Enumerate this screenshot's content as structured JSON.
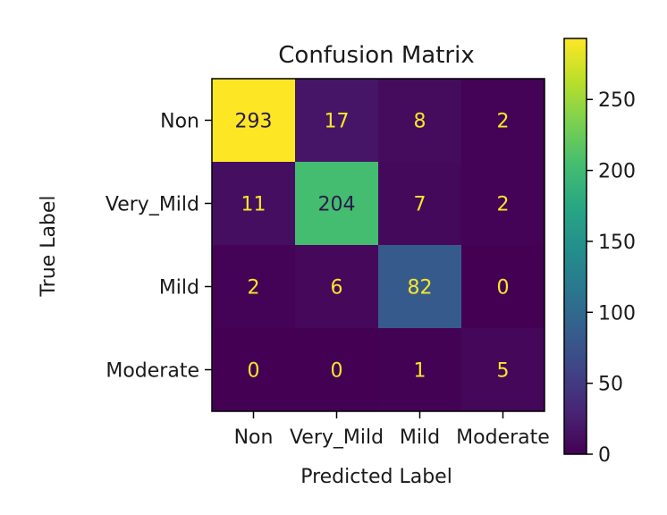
{
  "chart_data": {
    "type": "heatmap",
    "title": "Confusion Matrix",
    "xlabel": "Predicted Label",
    "ylabel": "True Label",
    "x_categories": [
      "Non",
      "Very_Mild",
      "Mild",
      "Moderate"
    ],
    "y_categories": [
      "Non",
      "Very_Mild",
      "Mild",
      "Moderate"
    ],
    "values": [
      [
        293,
        17,
        8,
        2
      ],
      [
        11,
        204,
        7,
        2
      ],
      [
        2,
        6,
        82,
        0
      ],
      [
        0,
        0,
        1,
        5
      ]
    ],
    "colormap": "viridis",
    "colorbar": {
      "range": [
        0,
        293
      ],
      "ticks": [
        0,
        50,
        100,
        150,
        200,
        250
      ]
    },
    "grid": false
  }
}
